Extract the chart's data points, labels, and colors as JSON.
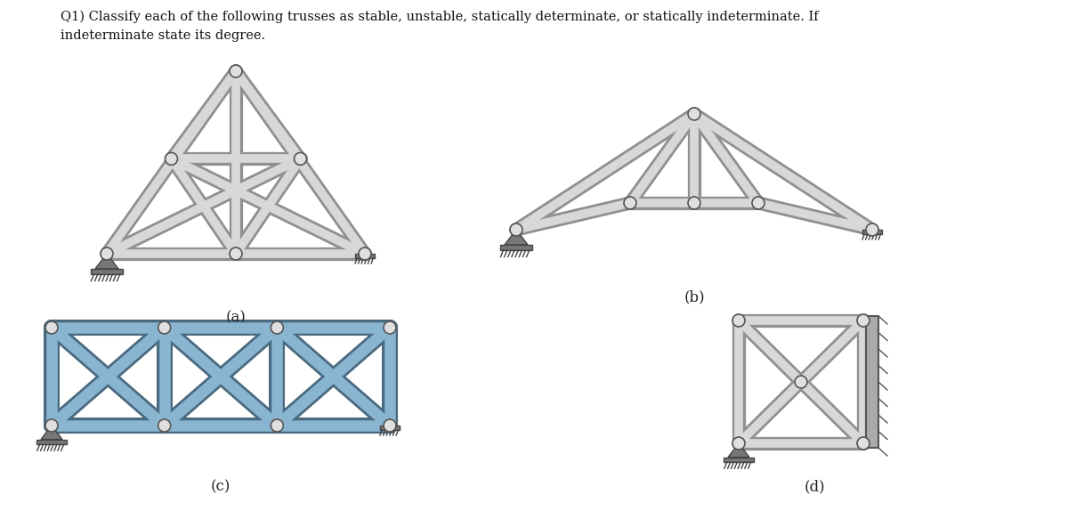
{
  "title_text": "Q1) Classify each of the following trusses as stable, unstable, statically determinate, or statically indeterminate. If\nindeterminate state its degree.",
  "labels": [
    "(a)",
    "(b)",
    "(c)",
    "(d)"
  ],
  "bg_color": "#ffffff",
  "co_gray": "#909090",
  "ci_gray": "#d8d8d8",
  "co_blue": "#4a6a80",
  "ci_blue": "#8ab5d0",
  "lw_o": 11,
  "lw_i": 7,
  "lw_o_blue": 13,
  "lw_i_blue": 9
}
